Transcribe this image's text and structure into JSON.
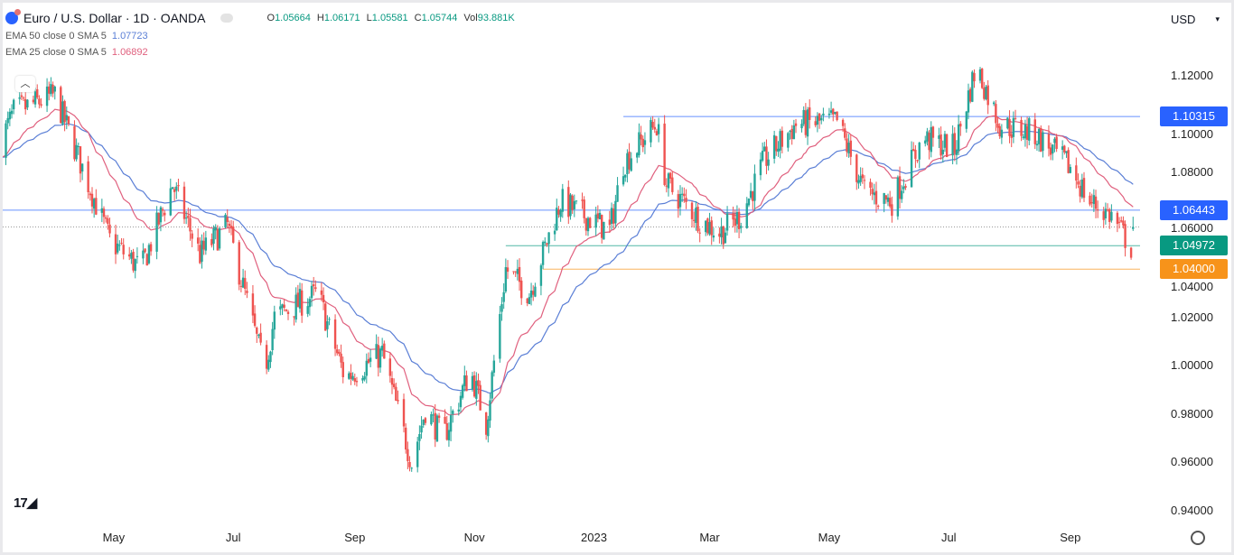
{
  "header": {
    "symbol": "Euro / U.S. Dollar · 1D · OANDA",
    "ohlc": {
      "o_label": "O",
      "o": "1.05664",
      "h_label": "H",
      "h": "1.06171",
      "l_label": "L",
      "l": "1.05581",
      "c_label": "C",
      "c": "1.05744",
      "vol_label": "Vol",
      "vol": "93.881K"
    },
    "ema50": {
      "label": "EMA 50 close 0 SMA 5",
      "value": "1.07723"
    },
    "ema25": {
      "label": "EMA 25 close 0 SMA 5",
      "value": "1.06892"
    },
    "currency": "USD",
    "collapse_icon": "chevron-up-icon"
  },
  "colors": {
    "up": "#26a69a",
    "down": "#ef5350",
    "ema50": "#5b7fd6",
    "ema25": "#e0607e",
    "blue_tag": "#2962ff",
    "green_tag": "#089981",
    "orange_tag": "#f7931a"
  },
  "chart_data": {
    "type": "candlestick",
    "title": "Euro / U.S. Dollar · 1D · OANDA",
    "ylim": [
      0.94,
      1.12
    ],
    "y_ticks": [
      "1.12000",
      "1.10000",
      "1.08000",
      "1.06000",
      "1.04000",
      "1.02000",
      "1.00000",
      "0.98000",
      "0.96000",
      "0.94000"
    ],
    "x_ticks": [
      {
        "label": "May",
        "date": "2022-05-01"
      },
      {
        "label": "Jul",
        "date": "2022-07-01"
      },
      {
        "label": "Sep",
        "date": "2022-09-01"
      },
      {
        "label": "Nov",
        "date": "2022-11-01"
      },
      {
        "label": "2023",
        "date": "2023-01-01"
      },
      {
        "label": "Mar",
        "date": "2023-03-01"
      },
      {
        "label": "May",
        "date": "2023-05-01"
      },
      {
        "label": "Jul",
        "date": "2023-07-01"
      },
      {
        "label": "Sep",
        "date": "2023-09-01"
      }
    ],
    "start_date": "2022-03-04",
    "close_keypoints": [
      [
        "2022-03-04",
        1.092
      ],
      [
        "2022-03-11",
        1.105
      ],
      [
        "2022-04-01",
        1.112
      ],
      [
        "2022-04-29",
        1.052
      ],
      [
        "2022-05-15",
        1.04
      ],
      [
        "2022-05-31",
        1.075
      ],
      [
        "2022-06-14",
        1.046
      ],
      [
        "2022-06-28",
        1.058
      ],
      [
        "2022-07-17",
        0.998
      ],
      [
        "2022-07-22",
        1.02
      ],
      [
        "2022-08-13",
        1.03
      ],
      [
        "2022-08-27",
        0.995
      ],
      [
        "2022-09-15",
        1.005
      ],
      [
        "2022-09-30",
        0.96
      ],
      [
        "2022-10-07",
        0.982
      ],
      [
        "2022-10-16",
        0.97
      ],
      [
        "2022-10-30",
        0.998
      ],
      [
        "2022-11-07",
        0.976
      ],
      [
        "2022-11-17",
        1.04
      ],
      [
        "2022-11-29",
        1.03
      ],
      [
        "2022-12-15",
        1.068
      ],
      [
        "2023-01-09",
        1.056
      ],
      [
        "2023-01-16",
        1.084
      ],
      [
        "2023-02-02",
        1.1
      ],
      [
        "2023-02-07",
        1.075
      ],
      [
        "2023-02-25",
        1.06
      ],
      [
        "2023-03-06",
        1.055
      ],
      [
        "2023-03-17",
        1.062
      ],
      [
        "2023-03-29",
        1.085
      ],
      [
        "2023-04-14",
        1.1
      ],
      [
        "2023-05-05",
        1.101
      ],
      [
        "2023-05-19",
        1.072
      ],
      [
        "2023-06-02",
        1.068
      ],
      [
        "2023-06-18",
        1.094
      ],
      [
        "2023-07-04",
        1.09
      ],
      [
        "2023-07-15",
        1.124
      ],
      [
        "2023-07-27",
        1.1
      ],
      [
        "2023-08-14",
        1.096
      ],
      [
        "2023-09-01",
        1.082
      ],
      [
        "2023-09-11",
        1.068
      ],
      [
        "2023-09-22",
        1.062
      ],
      [
        "2023-10-02",
        1.049
      ],
      [
        "2023-10-03",
        1.0574
      ]
    ],
    "last_candle": {
      "open": 1.05664,
      "high": 1.06171,
      "low": 1.05581,
      "close": 1.05744
    },
    "series": [
      {
        "name": "EMA 50",
        "last": 1.07723
      },
      {
        "name": "EMA 25",
        "last": 1.06892
      }
    ],
    "horizontal_lines": [
      {
        "price": 1.10315,
        "label": "1.10315",
        "color": "#2962ff",
        "from": "2023-01-16"
      },
      {
        "price": 1.06443,
        "label": "1.06443",
        "color": "#2962ff",
        "from": "2022-03-04"
      },
      {
        "price": 1.04972,
        "label": "1.04972",
        "color": "#089981",
        "from": "2022-11-17"
      },
      {
        "price": 1.04,
        "label": "1.04000",
        "color": "#f7931a",
        "from": "2022-12-06"
      }
    ],
    "current_price": 1.05744
  }
}
